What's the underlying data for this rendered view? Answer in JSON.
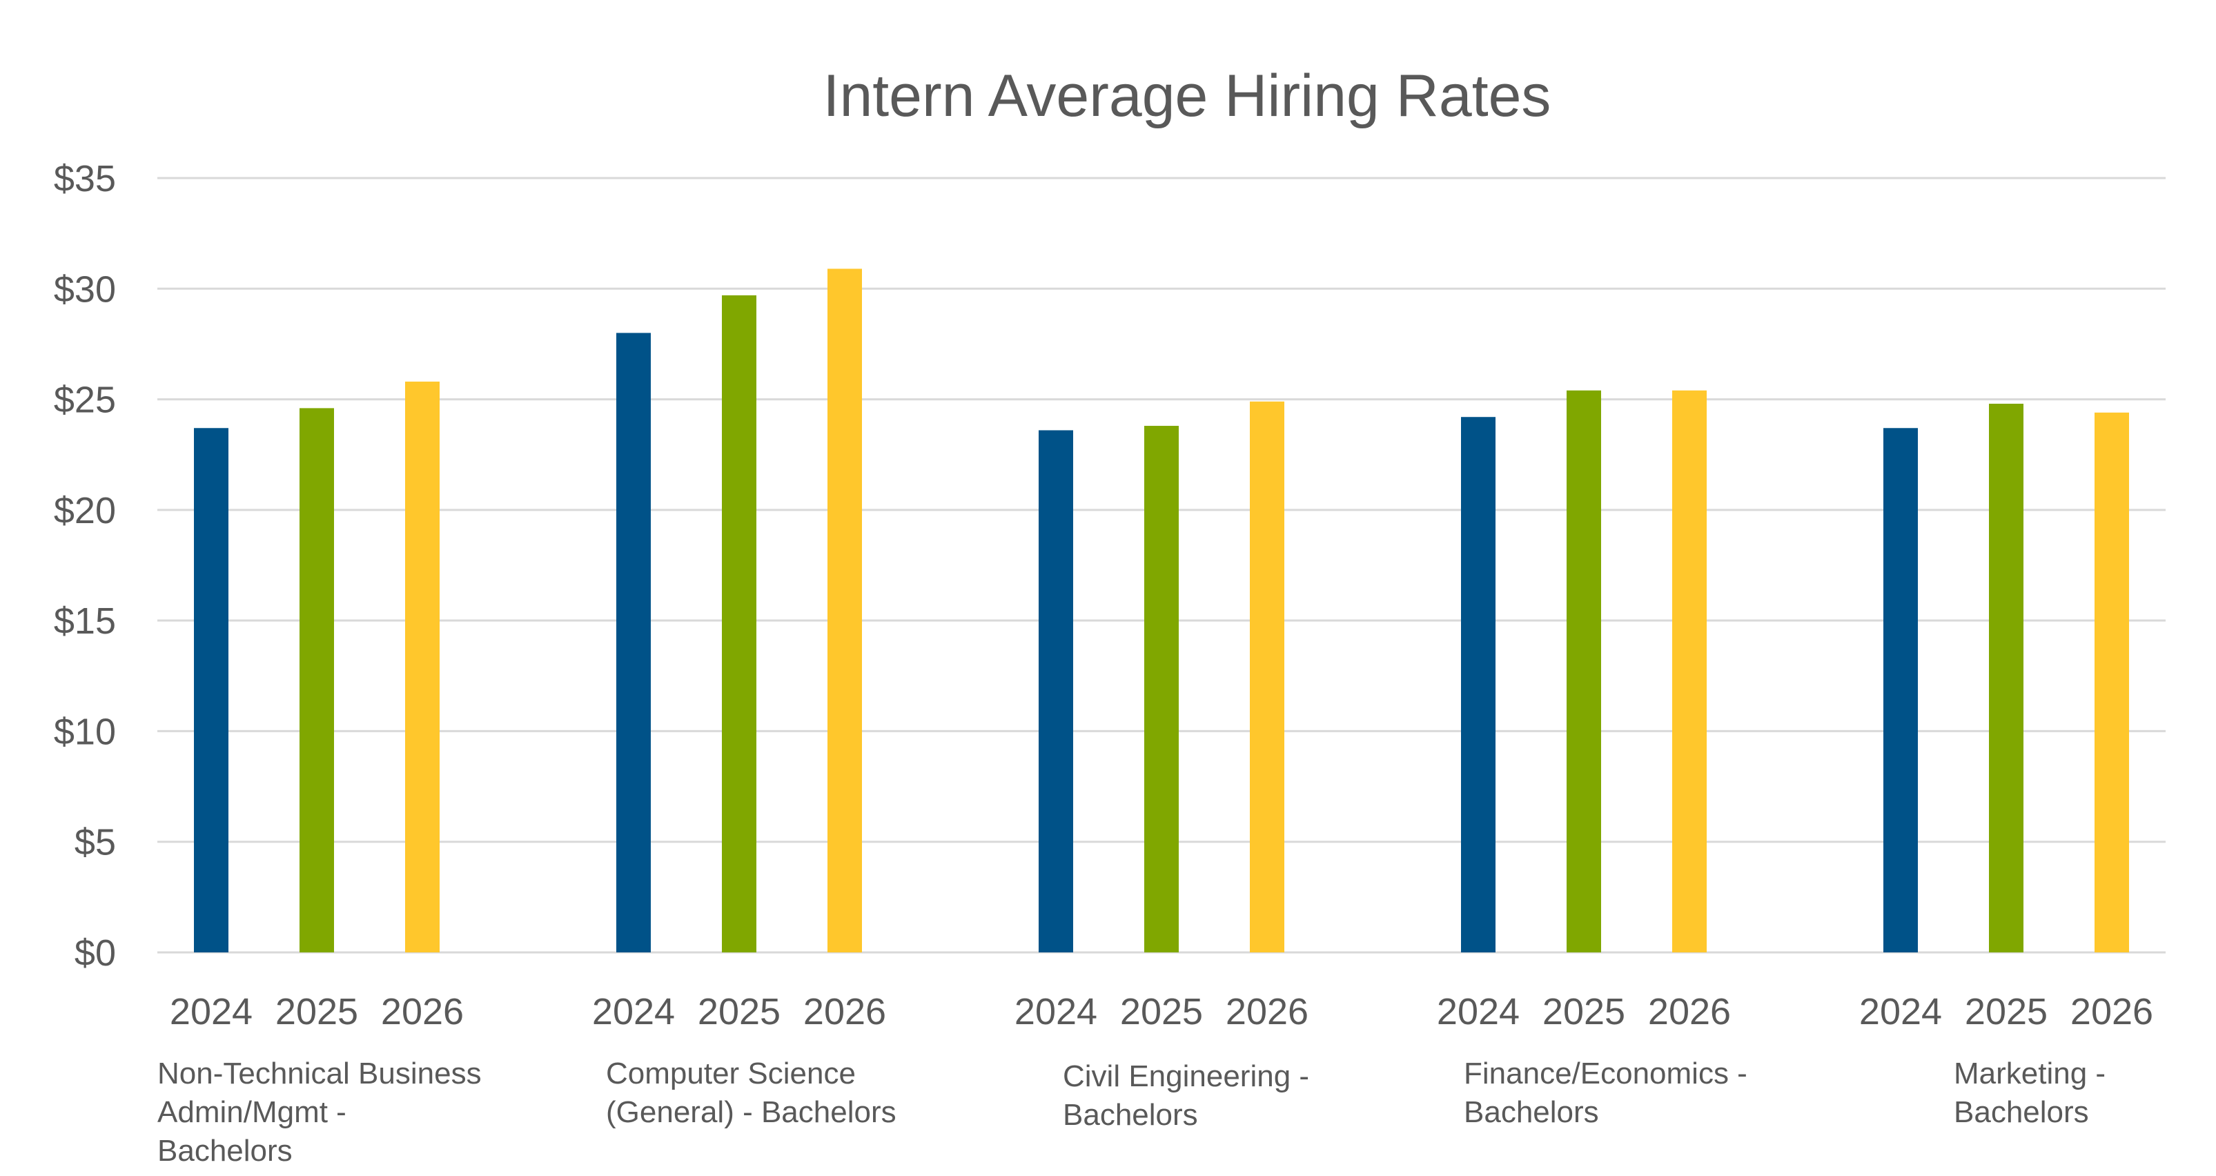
{
  "chart_data": {
    "type": "bar",
    "title": "Intern Average Hiring Rates",
    "xlabel": "",
    "ylabel": "",
    "ylim": [
      0,
      35
    ],
    "yticks": [
      0,
      5,
      10,
      15,
      20,
      25,
      30,
      35
    ],
    "ytick_labels": [
      "$0",
      "$5",
      "$10",
      "$15",
      "$20",
      "$25",
      "$30",
      "$35"
    ],
    "grid": true,
    "legend": "none",
    "categories": [
      {
        "label_lines": [
          "Non-Technical Business",
          "Admin/Mgmt -",
          "Bachelors"
        ]
      },
      {
        "label_lines": [
          "Computer Science",
          "(General) - Bachelors"
        ]
      },
      {
        "label_lines": [
          "Civil Engineering -",
          "Bachelors"
        ]
      },
      {
        "label_lines": [
          "Finance/Economics -",
          "Bachelors"
        ]
      },
      {
        "label_lines": [
          "Marketing -",
          "Bachelors"
        ]
      }
    ],
    "years": [
      "2024",
      "2025",
      "2026"
    ],
    "colors": [
      "#005288",
      "#80a700",
      "#ffc72c"
    ],
    "values": [
      [
        23.7,
        24.6,
        25.8
      ],
      [
        28.0,
        29.7,
        30.9
      ],
      [
        23.6,
        23.8,
        24.9
      ],
      [
        24.2,
        25.4,
        25.4
      ],
      [
        23.7,
        24.8,
        24.4
      ]
    ]
  }
}
